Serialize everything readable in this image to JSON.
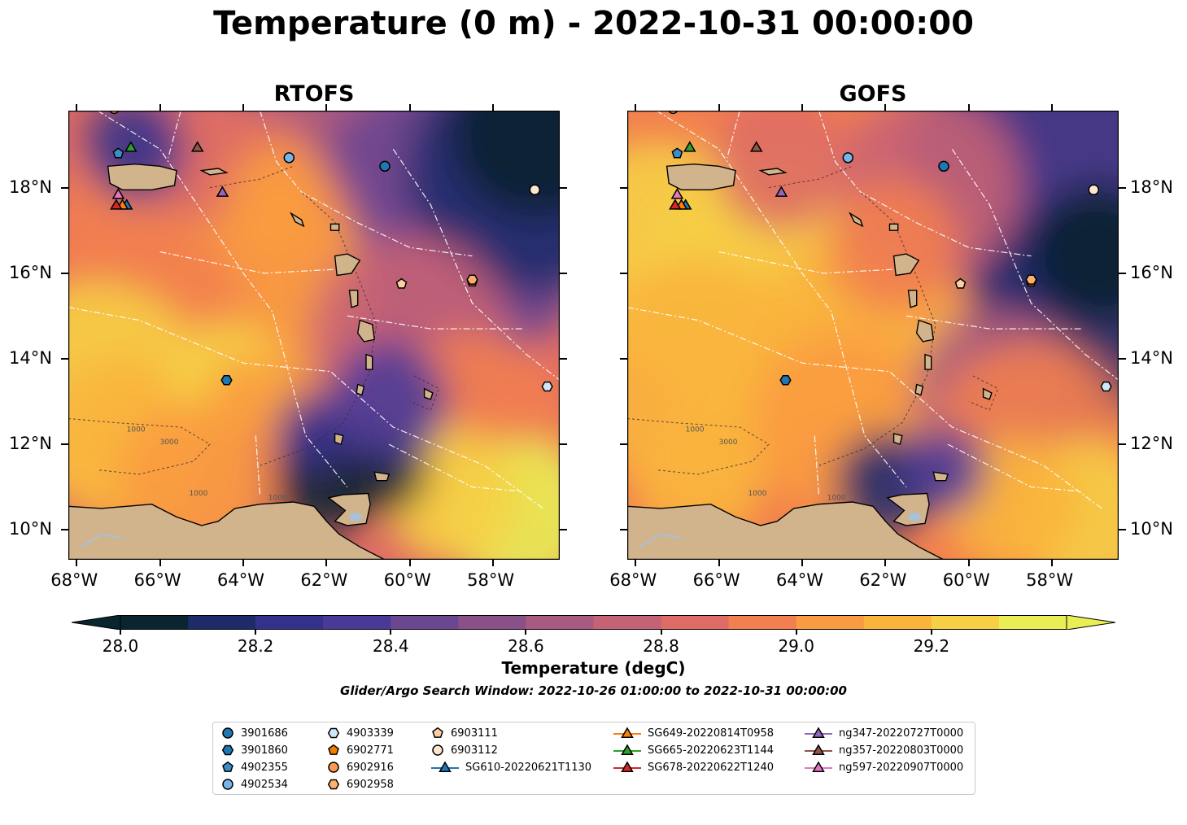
{
  "figure": {
    "title": "Temperature (0 m) - 2022-10-31 00:00:00",
    "panels": [
      {
        "id": "rtofs",
        "title": "RTOFS",
        "side": "left"
      },
      {
        "id": "gofs",
        "title": "GOFS",
        "side": "right"
      }
    ],
    "lon_ticks": [
      "68°W",
      "66°W",
      "64°W",
      "62°W",
      "60°W",
      "58°W"
    ],
    "lat_ticks": [
      "18°N",
      "16°N",
      "14°N",
      "12°N",
      "10°N"
    ],
    "contour_labels": [
      "1000",
      "3000",
      "1000",
      "1000"
    ],
    "colorbar": {
      "label": "Temperature (degC)",
      "ticks": [
        "28.0",
        "28.2",
        "28.4",
        "28.6",
        "28.8",
        "29.0",
        "29.2"
      ],
      "levels": [
        28.0,
        28.1,
        28.2,
        28.3,
        28.4,
        28.5,
        28.6,
        28.7,
        28.8,
        28.9,
        29.0,
        29.1,
        29.2,
        29.3
      ],
      "colors": [
        "#0a2430",
        "#1d2b6b",
        "#34318c",
        "#4a3a98",
        "#6b4691",
        "#8a5189",
        "#a95a80",
        "#c66276",
        "#de6b65",
        "#f27f4f",
        "#f99b40",
        "#fab43d",
        "#f6cf45",
        "#e9ee54"
      ],
      "under_color": "#0a2430",
      "over_color": "#e9ee54"
    },
    "search_window": "Glider/Argo Search Window: 2022-10-26 01:00:00 to 2022-10-31 00:00:00",
    "land_color": "#d2b48c",
    "lake_color": "#a7c1d8"
  },
  "chart_data": {
    "type": "map",
    "lon_range": [
      -68.2,
      -56.4
    ],
    "lat_range": [
      9.3,
      19.8
    ],
    "variable": "Temperature (0 m)",
    "units": "degC",
    "vmin": 28.0,
    "vmax": 29.3,
    "observations": [
      {
        "name": "3901686",
        "marker": "circle",
        "color": "#1f77b4",
        "lon": -60.6,
        "lat": 18.5
      },
      {
        "name": "3901860",
        "marker": "hexagon",
        "color": "#1f77b4",
        "lon": -64.4,
        "lat": 13.5
      },
      {
        "name": "4902355",
        "marker": "pentagon",
        "color": "#3a8fc7",
        "lon": -67.0,
        "lat": 18.8
      },
      {
        "name": "4902534",
        "marker": "circle",
        "color": "#76b5e8",
        "lon": -62.9,
        "lat": 18.7
      },
      {
        "name": "4903339",
        "marker": "hexagon",
        "color": "#cfe8f7",
        "lon": -56.7,
        "lat": 13.35
      },
      {
        "name": "6902771",
        "marker": "pentagon",
        "color": "#f57c00",
        "lon": -58.5,
        "lat": 15.8
      },
      {
        "name": "6902916",
        "marker": "circle",
        "color": "#fb9a50",
        "lon": -67.1,
        "lat": 19.85
      },
      {
        "name": "6902958",
        "marker": "hexagon",
        "color": "#fbb06e",
        "lon": -58.5,
        "lat": 15.85
      },
      {
        "name": "6903111",
        "marker": "pentagon",
        "color": "#fdd0a2",
        "lon": -60.2,
        "lat": 15.75
      },
      {
        "name": "6903112",
        "marker": "circle",
        "color": "#fee6ce",
        "lon": -57.0,
        "lat": 17.95
      },
      {
        "name": "SG610-20220621T1130",
        "marker": "triangle",
        "color": "#1f77b4",
        "lon": -66.8,
        "lat": 17.6
      },
      {
        "name": "SG649-20220814T0958",
        "marker": "triangle",
        "color": "#ff7f0e",
        "lon": -66.9,
        "lat": 17.6
      },
      {
        "name": "SG665-20220623T1144",
        "marker": "triangle",
        "color": "#2ca02c",
        "lon": -66.7,
        "lat": 18.95
      },
      {
        "name": "SG678-20220622T1240",
        "marker": "triangle",
        "color": "#d62728",
        "lon": -67.05,
        "lat": 17.6
      },
      {
        "name": "ng347-20220727T0000",
        "marker": "triangle",
        "color": "#9467bd",
        "lon": -64.5,
        "lat": 17.9
      },
      {
        "name": "ng357-20220803T0000",
        "marker": "triangle",
        "color": "#8c564b",
        "lon": -65.1,
        "lat": 18.95
      },
      {
        "name": "ng597-20220907T0000",
        "marker": "triangle",
        "color": "#e377c2",
        "lon": -67.0,
        "lat": 17.85
      }
    ]
  }
}
